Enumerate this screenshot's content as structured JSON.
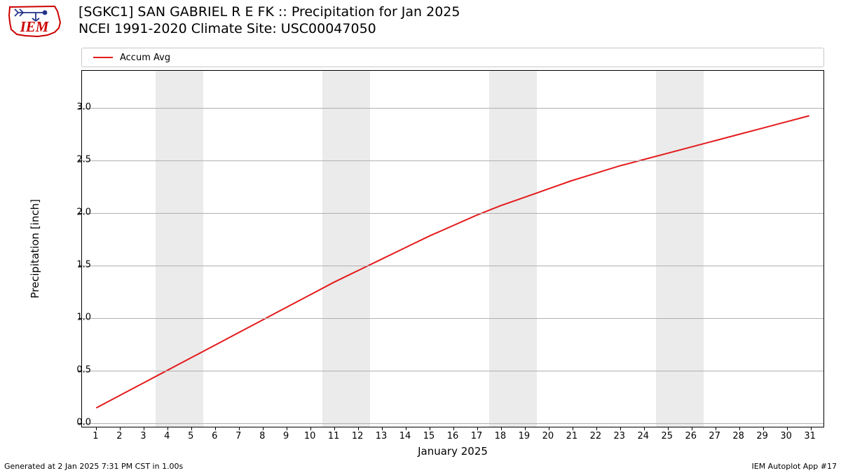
{
  "logo": {
    "text": "IEM",
    "text_color": "#cc0000",
    "outline_color": "#cc0000",
    "arrow_color": "#223388"
  },
  "title": {
    "line1": "[SGKC1] SAN GABRIEL R E FK :: Precipitation for Jan 2025",
    "line2": "NCEI 1991-2020 Climate Site: USC00047050",
    "fontsize": 19
  },
  "legend": {
    "label": "Accum Avg",
    "color": "#e41a1c",
    "fontsize": 13
  },
  "chart": {
    "type": "line",
    "background_color": "#ffffff",
    "weekend_band_color": "#ebebeb",
    "grid_color": "#b0b0b0",
    "border_color": "#000000",
    "line_color": "#e41a1c",
    "line_width": 2.0,
    "xlabel": "January 2025",
    "ylabel": "Precipitation [inch]",
    "label_fontsize": 15,
    "tick_fontsize": 13,
    "xlim": [
      0.4,
      31.6
    ],
    "ylim": [
      -0.05,
      3.35
    ],
    "xtick_step": 1,
    "xtick_labels": [
      "1",
      "2",
      "3",
      "4",
      "5",
      "6",
      "7",
      "8",
      "9",
      "10",
      "11",
      "12",
      "13",
      "14",
      "15",
      "16",
      "17",
      "18",
      "19",
      "20",
      "21",
      "22",
      "23",
      "24",
      "25",
      "26",
      "27",
      "28",
      "29",
      "30",
      "31"
    ],
    "yticks": [
      0.0,
      0.5,
      1.0,
      1.5,
      2.0,
      2.5,
      3.0
    ],
    "ytick_labels": [
      "0.0",
      "0.5",
      "1.0",
      "1.5",
      "2.0",
      "2.5",
      "3.0"
    ],
    "weekend_bands": [
      {
        "start": 3.5,
        "end": 5.5
      },
      {
        "start": 10.5,
        "end": 12.5
      },
      {
        "start": 17.5,
        "end": 19.5
      },
      {
        "start": 24.5,
        "end": 26.5
      }
    ],
    "series": {
      "x": [
        1,
        2,
        3,
        4,
        5,
        6,
        7,
        8,
        9,
        10,
        11,
        12,
        13,
        14,
        15,
        16,
        17,
        18,
        19,
        20,
        21,
        22,
        23,
        24,
        25,
        26,
        27,
        28,
        29,
        30,
        31
      ],
      "y": [
        0.13,
        0.25,
        0.37,
        0.49,
        0.61,
        0.73,
        0.85,
        0.97,
        1.09,
        1.21,
        1.33,
        1.44,
        1.55,
        1.66,
        1.77,
        1.87,
        1.97,
        2.06,
        2.14,
        2.22,
        2.3,
        2.37,
        2.44,
        2.5,
        2.56,
        2.62,
        2.68,
        2.74,
        2.8,
        2.86,
        2.92
      ]
    }
  },
  "footer": {
    "left": "Generated at 2 Jan 2025 7:31 PM CST in 1.00s",
    "right": "IEM Autoplot App #17",
    "fontsize": 11
  }
}
